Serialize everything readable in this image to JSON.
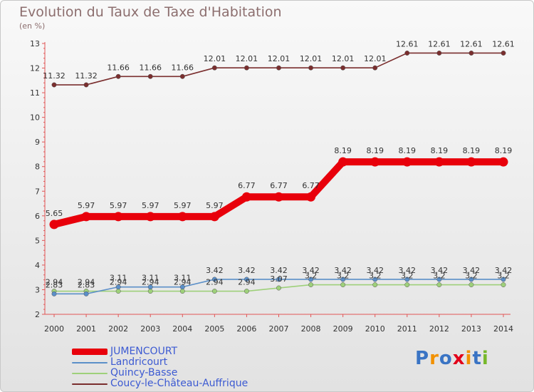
{
  "header": {
    "title": "Evolution du Taux de Taxe d'Habitation",
    "subtitle": "(en %)"
  },
  "logo": {
    "text": "Proxiti",
    "letters": [
      {
        "char": "P",
        "color": "#3a74c4"
      },
      {
        "char": "r",
        "color": "#f29100"
      },
      {
        "char": "o",
        "color": "#3a74c4"
      },
      {
        "char": "x",
        "color": "#e2001a"
      },
      {
        "char": "i",
        "color": "#f29100"
      },
      {
        "char": "t",
        "color": "#3a74c4"
      },
      {
        "char": "i",
        "color": "#76b82a"
      }
    ]
  },
  "chart_data": {
    "type": "line",
    "title": "Evolution du Taux de Taxe d'Habitation",
    "subtitle": "(en %)",
    "xlabel": "",
    "ylabel": "",
    "ylim": [
      2,
      13
    ],
    "yticks": [
      2,
      3,
      4,
      5,
      6,
      7,
      8,
      9,
      10,
      11,
      12,
      13
    ],
    "grid": false,
    "legend_position": "bottom-left",
    "categories": [
      "2000",
      "2001",
      "2002",
      "2003",
      "2004",
      "2005",
      "2006",
      "2007",
      "2008",
      "2009",
      "2010",
      "2011",
      "2012",
      "2013",
      "2014"
    ],
    "series": [
      {
        "name": "Coucy-le-Château-Auffrique",
        "color": "#7a2e2e",
        "values": [
          11.32,
          11.32,
          11.66,
          11.66,
          11.66,
          12.01,
          12.01,
          12.01,
          12.01,
          12.01,
          12.01,
          12.61,
          12.61,
          12.61,
          12.61
        ],
        "labels": [
          "11.32",
          "11.32",
          "11.66",
          "11.66",
          "11.66",
          "12.01",
          "12.01",
          "12.01",
          "12.01",
          "12.01",
          "12.01",
          "12.61",
          "12.61",
          "12.61",
          "12.61"
        ]
      },
      {
        "name": "JUMENCOURT",
        "color": "#e8000b",
        "values": [
          5.65,
          5.97,
          5.97,
          5.97,
          5.97,
          5.97,
          6.77,
          6.77,
          6.77,
          8.19,
          8.19,
          8.19,
          8.19,
          8.19,
          8.19
        ],
        "labels": [
          "5.65",
          "5.97",
          "5.97",
          "5.97",
          "5.97",
          "5.97",
          "6.77",
          "6.77",
          "6.77",
          "8.19",
          "8.19",
          "8.19",
          "8.19",
          "8.19",
          "8.19"
        ]
      },
      {
        "name": "Landricourt",
        "color": "#5b8fc8",
        "values": [
          2.83,
          2.83,
          3.11,
          3.11,
          3.11,
          3.42,
          3.42,
          3.42,
          3.42,
          3.42,
          3.42,
          3.42,
          3.42,
          3.42,
          3.42
        ],
        "labels": [
          "2.83",
          "2.83",
          "3.11",
          "3.11",
          "3.11",
          "3.42",
          "3.42",
          "3.42",
          "3.42",
          "3.42",
          "3.42",
          "3.42",
          "3.42",
          "3.42",
          "3.42"
        ]
      },
      {
        "name": "Quincy-Basse",
        "color": "#9ed07a",
        "values": [
          2.94,
          2.94,
          2.94,
          2.94,
          2.94,
          2.94,
          2.94,
          3.07,
          3.2,
          3.2,
          3.2,
          3.2,
          3.2,
          3.2,
          3.2
        ],
        "labels": [
          "2.94",
          "2.94",
          "2.94",
          "2.94",
          "2.94",
          "2.94",
          "2.94",
          "3.07",
          "3.2",
          "3.2",
          "3.2",
          "3.2",
          "3.2",
          "3.2",
          "3.2"
        ]
      }
    ]
  },
  "legend": {
    "items": [
      {
        "label": "JUMENCOURT",
        "color": "#e8000b",
        "thick": true
      },
      {
        "label": "Landricourt",
        "color": "#5b8fc8",
        "thick": false
      },
      {
        "label": "Quincy-Basse",
        "color": "#9ed07a",
        "thick": false
      },
      {
        "label": "Coucy-le-Château-Auffrique",
        "color": "#7a2e2e",
        "thick": false
      }
    ]
  }
}
